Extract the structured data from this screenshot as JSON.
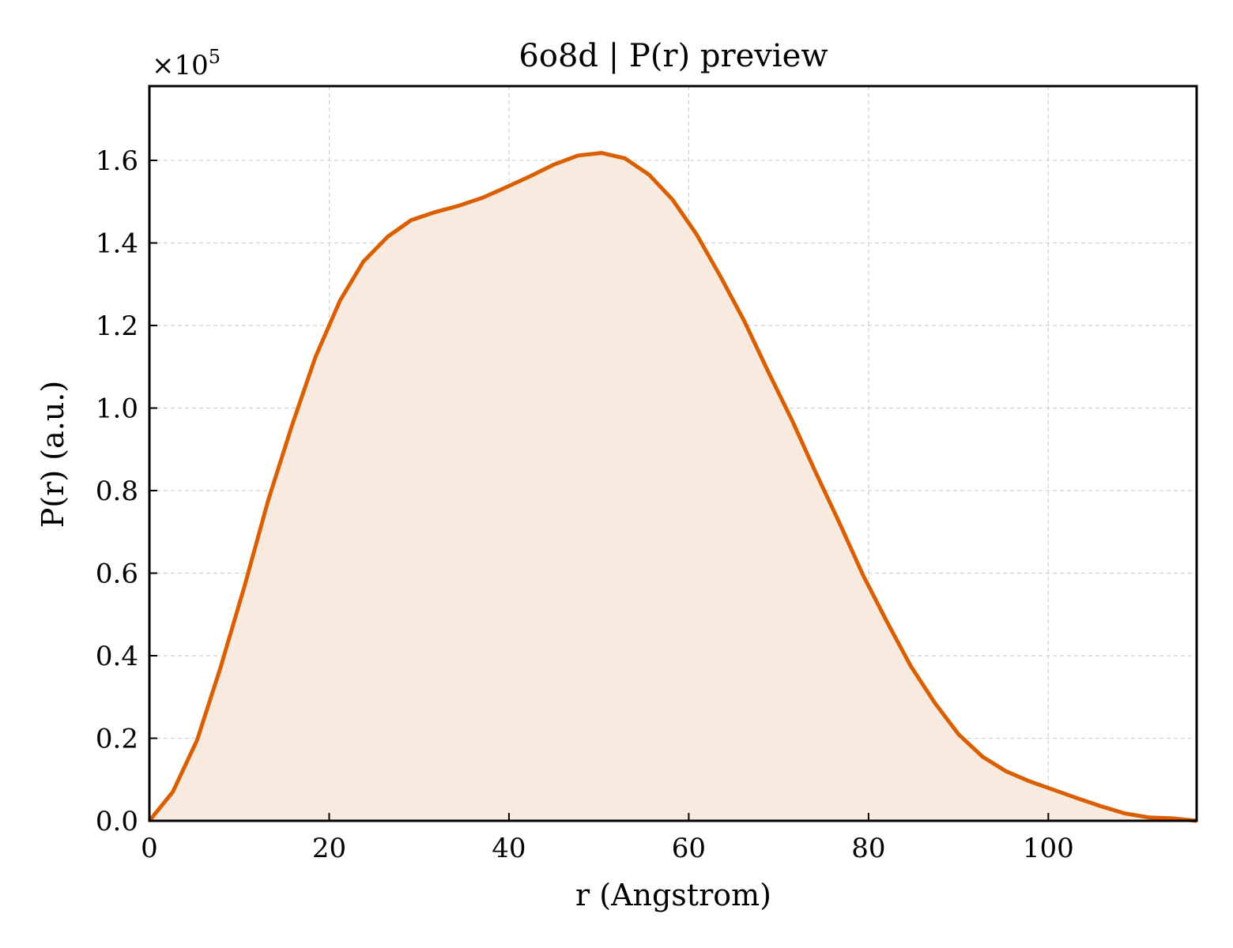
{
  "chart_data": {
    "type": "area",
    "title": "6o8d | P(r) preview",
    "xlabel": "r (Angstrom)",
    "ylabel": "P(r) (a.u.)",
    "y_offset_base": "×10",
    "y_offset_exp": "5",
    "y_scale": 100000,
    "xlim": [
      0,
      116.5
    ],
    "ylim": [
      0,
      1.78
    ],
    "xticks": [
      0,
      20,
      40,
      60,
      80,
      100
    ],
    "xtick_labels": [
      "0",
      "20",
      "40",
      "60",
      "80",
      "100"
    ],
    "yticks": [
      0.0,
      0.2,
      0.4,
      0.6,
      0.8,
      1.0,
      1.2,
      1.4,
      1.6
    ],
    "ytick_labels": [
      "0.0",
      "0.2",
      "0.4",
      "0.6",
      "0.8",
      "1.0",
      "1.2",
      "1.4",
      "1.6"
    ],
    "grid": true,
    "line_color": "#d95f02",
    "fill_color": "#f9eae0",
    "series": [
      {
        "x": [
          0,
          2.6,
          5.3,
          7.9,
          10.6,
          13.2,
          15.9,
          18.5,
          21.2,
          23.8,
          26.5,
          29.1,
          31.8,
          34.4,
          37.1,
          39.7,
          42.4,
          45.0,
          47.7,
          50.3,
          52.9,
          55.6,
          58.2,
          60.9,
          63.5,
          66.2,
          68.8,
          71.5,
          74.1,
          76.8,
          79.4,
          82.1,
          84.7,
          87.4,
          90.0,
          92.7,
          95.3,
          98.0,
          100.6,
          103.2,
          105.9,
          108.5,
          111.2,
          113.8,
          116.5
        ],
        "y": [
          0.0,
          0.07,
          0.195,
          0.37,
          0.57,
          0.775,
          0.96,
          1.125,
          1.26,
          1.355,
          1.415,
          1.455,
          1.475,
          1.49,
          1.51,
          1.535,
          1.562,
          1.59,
          1.612,
          1.618,
          1.605,
          1.565,
          1.505,
          1.42,
          1.32,
          1.21,
          1.09,
          0.97,
          0.845,
          0.72,
          0.595,
          0.48,
          0.375,
          0.285,
          0.21,
          0.155,
          0.12,
          0.095,
          0.075,
          0.055,
          0.035,
          0.018,
          0.008,
          0.006,
          0.0
        ]
      }
    ]
  }
}
